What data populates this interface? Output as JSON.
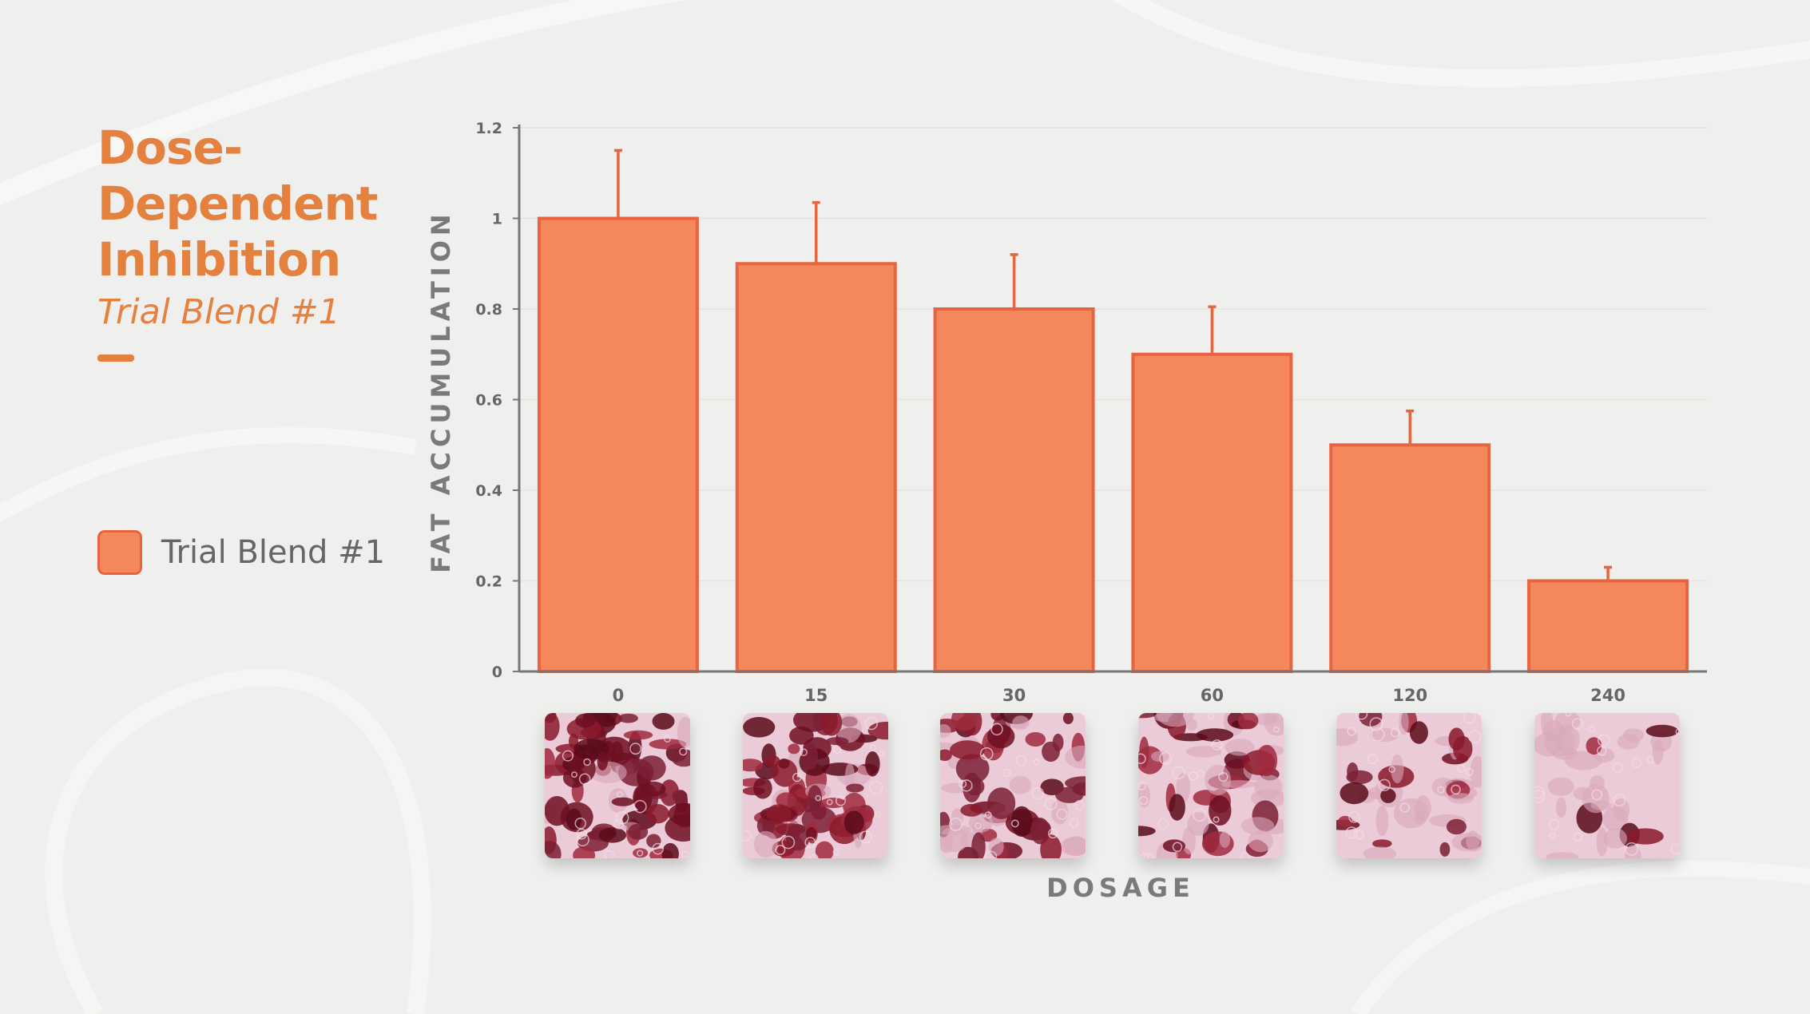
{
  "title": {
    "lines": [
      "Dose-",
      "Dependent",
      "Inhibition"
    ],
    "subtitle": "Trial Blend #1"
  },
  "legend": {
    "label": "Trial Blend #1",
    "color": "#f5875d",
    "border_color": "#e8633f"
  },
  "colors": {
    "accent": "#e5813e",
    "bar": "#f5875d",
    "bar_edge": "#e8633f",
    "axis": "#777777",
    "text": "#666666"
  },
  "chart_data": {
    "type": "bar",
    "categories": [
      "0",
      "15",
      "30",
      "60",
      "120",
      "240"
    ],
    "values": [
      1.0,
      0.9,
      0.8,
      0.7,
      0.5,
      0.2
    ],
    "error_upper": [
      1.15,
      1.035,
      0.92,
      0.805,
      0.575,
      0.23
    ],
    "ylim": [
      0,
      1.2
    ],
    "yticks": [
      0,
      0.2,
      0.4,
      0.6,
      0.8,
      1,
      1.2
    ],
    "ytick_labels": [
      "0",
      "0.2",
      "0.4",
      "0.6",
      "0.8",
      "1",
      "1.2"
    ],
    "xlabel": "DOSAGE",
    "ylabel": "FAT ACCUMULATION",
    "legend_position": "left",
    "grid": true
  },
  "images": [
    {
      "name": "stain-sample-0",
      "density": 0.92
    },
    {
      "name": "stain-sample-15",
      "density": 0.8
    },
    {
      "name": "stain-sample-30",
      "density": 0.66
    },
    {
      "name": "stain-sample-60",
      "density": 0.55
    },
    {
      "name": "stain-sample-120",
      "density": 0.42
    },
    {
      "name": "stain-sample-240",
      "density": 0.16
    }
  ]
}
